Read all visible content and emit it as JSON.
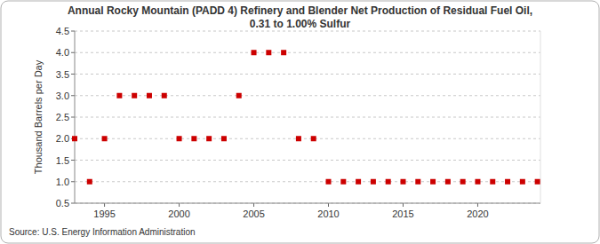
{
  "chart_data": {
    "type": "scatter",
    "title": "Annual Rocky Mountain (PADD 4) Refinery and Blender Net Production of Residual Fuel Oil, 0.31 to 1.00% Sulfur",
    "y_label": "Thousand Barrels per Day",
    "source": "Source: U.S. Energy Information Administration",
    "x": [
      1993,
      1994,
      1995,
      1996,
      1997,
      1998,
      1999,
      2000,
      2001,
      2002,
      2003,
      2004,
      2005,
      2006,
      2007,
      2008,
      2009,
      2010,
      2011,
      2012,
      2013,
      2014,
      2015,
      2016,
      2017,
      2018,
      2019,
      2020,
      2021,
      2022,
      2023,
      2024
    ],
    "values": [
      2,
      1,
      2,
      3,
      3,
      3,
      3,
      2,
      2,
      2,
      2,
      3,
      4,
      4,
      4,
      2,
      2,
      1,
      1,
      1,
      1,
      1,
      1,
      1,
      1,
      1,
      1,
      1,
      1,
      1,
      1,
      1
    ],
    "color": "#cc0000",
    "marker": "square",
    "xlim": [
      1993,
      2024.2
    ],
    "xticks": [
      1995,
      2000,
      2005,
      2010,
      2015,
      2020
    ],
    "ylim": [
      0.5,
      4.5
    ],
    "yticks": [
      0.5,
      {
        "value": 1,
        "label": "1.0"
      },
      1.5,
      {
        "value": 2,
        "label": "2.0"
      },
      2.5,
      {
        "value": 3,
        "label": "3.0"
      },
      3.5,
      {
        "value": 4,
        "label": "4.0"
      },
      4.5
    ],
    "grid": true
  }
}
